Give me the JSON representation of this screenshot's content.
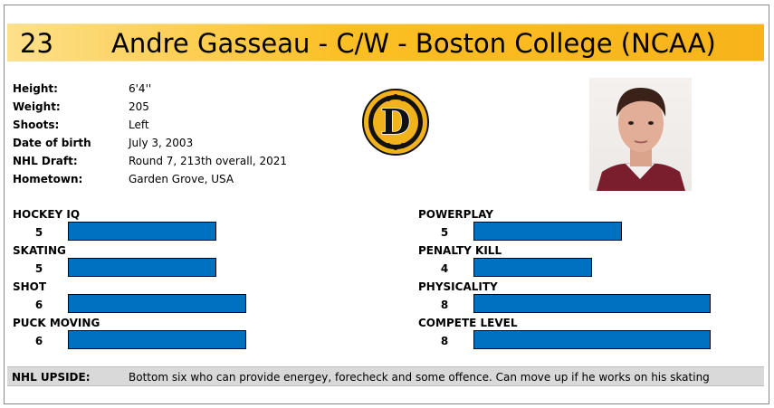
{
  "header": {
    "number": "23",
    "title": "Andre Gasseau - C/W - Boston College (NCAA)"
  },
  "info": [
    {
      "label": "Height:",
      "value": "6'4''"
    },
    {
      "label": "Weight:",
      "value": "205"
    },
    {
      "label": "Shoots:",
      "value": "Left"
    },
    {
      "label": "Date of birth",
      "value": "July 3, 2003"
    },
    {
      "label": "NHL Draft:",
      "value": "Round 7, 213th overall, 2021"
    },
    {
      "label": "Hometown:",
      "value": "Garden Grove, USA"
    }
  ],
  "logo": {
    "icon": "bruins-d-logo-icon",
    "letter": "D"
  },
  "photo": {
    "icon": "player-headshot"
  },
  "skills": {
    "max": 10,
    "left": [
      {
        "name": "HOCKEY IQ",
        "score": "5",
        "value": 5
      },
      {
        "name": "SKATING",
        "score": "5",
        "value": 5
      },
      {
        "name": "SHOT",
        "score": "6",
        "value": 6
      },
      {
        "name": "PUCK MOVING",
        "score": "6",
        "value": 6
      }
    ],
    "right": [
      {
        "name": "POWERPLAY",
        "score": "5",
        "value": 5
      },
      {
        "name": "PENALTY KILL",
        "score": "4",
        "value": 4
      },
      {
        "name": "PHYSICALITY",
        "score": "8",
        "value": 8
      },
      {
        "name": "COMPETE LEVEL",
        "score": "8",
        "value": 8
      }
    ]
  },
  "upside": {
    "label": "NHL UPSIDE:",
    "text": "Bottom six who can provide energey, forecheck and some offence. Can move up if he works on his skating"
  },
  "colors": {
    "header_gold": "#fbbf24",
    "bar_blue": "#0070c0",
    "upside_gray": "#d9d9d9",
    "logo_black": "#111111",
    "logo_gold": "#f2b21b"
  }
}
